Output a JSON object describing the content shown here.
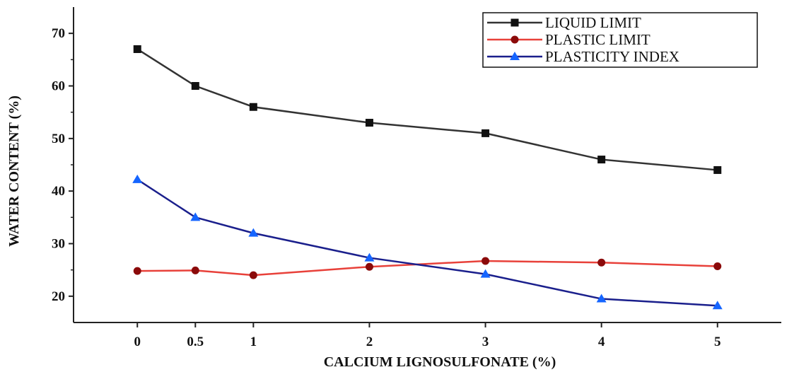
{
  "chart_data": {
    "type": "line",
    "xlabel": "CALCIUM LIGNOSULFONATE (%)",
    "ylabel": "WATER CONTENT (%)",
    "x": [
      0,
      0.5,
      1,
      2,
      3,
      4,
      5
    ],
    "x_tick_labels": [
      "0",
      "0.5",
      "1",
      "2",
      "3",
      "4",
      "5"
    ],
    "xlim": [
      -0.55,
      5.55
    ],
    "ylim": [
      15,
      75
    ],
    "y_ticks": [
      20,
      30,
      40,
      50,
      60,
      70
    ],
    "y_tick_labels": [
      "20",
      "30",
      "40",
      "50",
      "60",
      "70"
    ],
    "grid": false,
    "legend_position": "top-right",
    "series": [
      {
        "name": "LIQUID LIMIT",
        "color": "#333333",
        "marker": "square",
        "values": [
          67,
          60,
          56,
          53,
          51,
          46,
          44
        ]
      },
      {
        "name": "PLASTIC LIMIT",
        "color": "#e8413a",
        "marker_color": "#8b0a0a",
        "marker": "circle",
        "values": [
          24.8,
          24.9,
          24,
          25.6,
          26.7,
          26.4,
          25.7
        ]
      },
      {
        "name": "PLASTICITY INDEX",
        "color": "#1a1f8c",
        "marker_color": "#1565ff",
        "marker": "triangle",
        "values": [
          42.2,
          35,
          32,
          27.3,
          24.2,
          19.5,
          18.2
        ]
      }
    ]
  }
}
